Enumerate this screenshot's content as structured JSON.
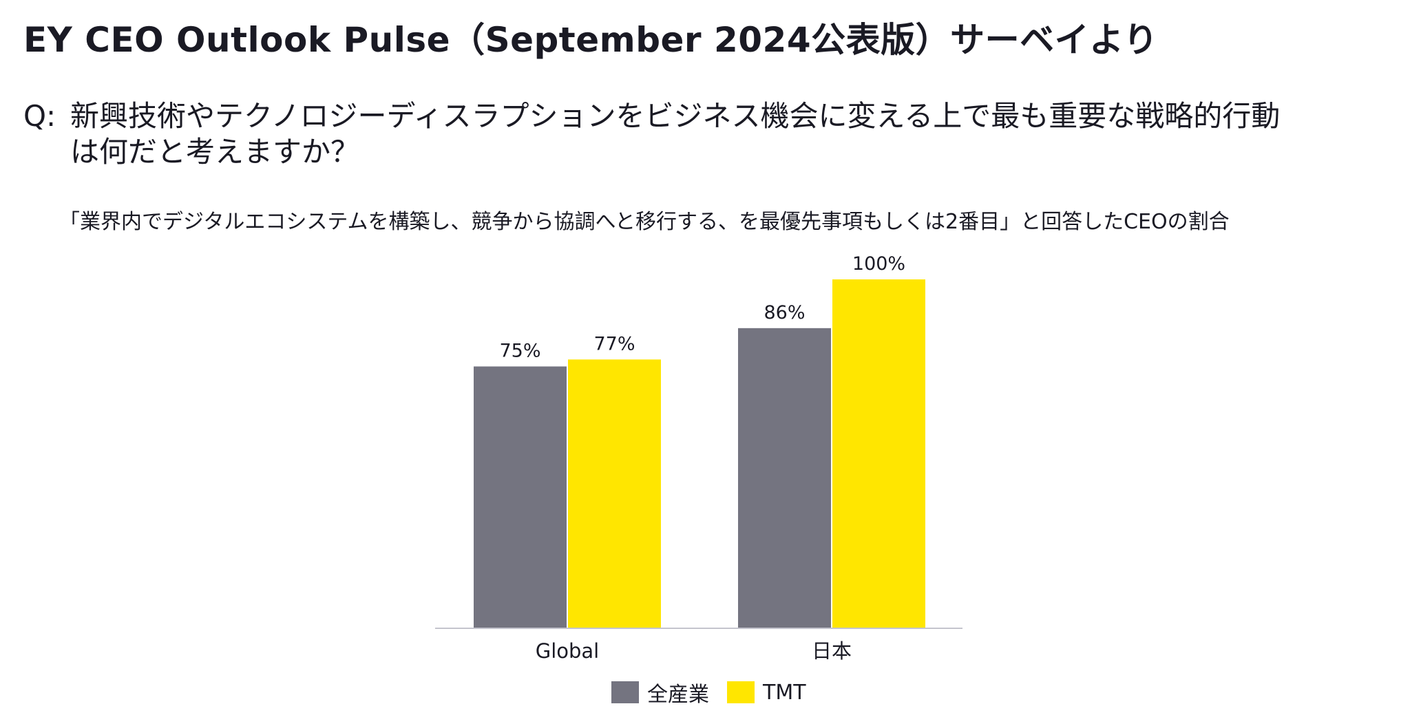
{
  "header": {
    "title": "EY CEO Outlook Pulse（September 2024公表版）サーベイより"
  },
  "question": {
    "prefix": "Q:",
    "line1": "新興技術やテクノロジーディスラプションをビジネス機会に変える上で最も重要な戦略的行動",
    "line2": "は何だと考えますか？"
  },
  "chart_data": {
    "type": "bar",
    "title": "「業界内でデジタルエコシステムを構築し、競争から協調へと移行する、を最優先事項もしくは2番目」と回答したCEOの割合",
    "categories": [
      "Global",
      "日本"
    ],
    "series": [
      {
        "name": "全産業",
        "values": [
          75,
          86
        ],
        "labels": [
          "75%",
          "86%"
        ],
        "color": "#747480"
      },
      {
        "name": "TMT",
        "values": [
          77,
          100
        ],
        "labels": [
          "77%",
          "100%"
        ],
        "color": "#ffe600"
      }
    ],
    "ylim": [
      0,
      100
    ],
    "grid": false,
    "legend": "bottom-center",
    "axis_color": "#c4c4cd"
  }
}
